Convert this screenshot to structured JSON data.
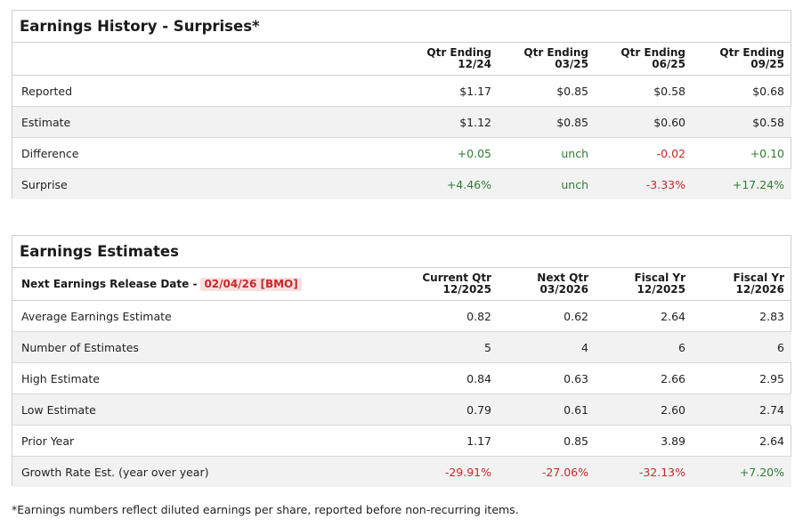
{
  "history": {
    "title": "Earnings History - Surprises*",
    "columns": [
      {
        "line1": "Qtr Ending",
        "line2": "12/24"
      },
      {
        "line1": "Qtr Ending",
        "line2": "03/25"
      },
      {
        "line1": "Qtr Ending",
        "line2": "06/25"
      },
      {
        "line1": "Qtr Ending",
        "line2": "09/25"
      }
    ],
    "rows": [
      {
        "label": "Reported",
        "values": [
          "$1.17",
          "$0.85",
          "$0.58",
          "$0.68"
        ]
      },
      {
        "label": "Estimate",
        "values": [
          "$1.12",
          "$0.85",
          "$0.60",
          "$0.58"
        ]
      },
      {
        "label": "Difference",
        "values": [
          "+0.05",
          "unch",
          "-0.02",
          "+0.10"
        ]
      },
      {
        "label": "Surprise",
        "values": [
          "+4.46%",
          "unch",
          "-3.33%",
          "+17.24%"
        ]
      }
    ]
  },
  "estimates": {
    "title": "Earnings Estimates",
    "release_label": "Next Earnings Release Date -",
    "release_date": "02/04/26 [BMO]",
    "columns": [
      {
        "line1": "Current Qtr",
        "line2": "12/2025"
      },
      {
        "line1": "Next Qtr",
        "line2": "03/2026"
      },
      {
        "line1": "Fiscal Yr",
        "line2": "12/2025"
      },
      {
        "line1": "Fiscal Yr",
        "line2": "12/2026"
      }
    ],
    "rows": [
      {
        "label": "Average Earnings Estimate",
        "values": [
          "0.82",
          "0.62",
          "2.64",
          "2.83"
        ]
      },
      {
        "label": "Number of Estimates",
        "values": [
          "5",
          "4",
          "6",
          "6"
        ]
      },
      {
        "label": "High Estimate",
        "values": [
          "0.84",
          "0.63",
          "2.66",
          "2.95"
        ]
      },
      {
        "label": "Low Estimate",
        "values": [
          "0.79",
          "0.61",
          "2.60",
          "2.74"
        ]
      },
      {
        "label": "Prior Year",
        "values": [
          "1.17",
          "0.85",
          "3.89",
          "2.64"
        ]
      },
      {
        "label": "Growth Rate Est. (year over year)",
        "values": [
          "-29.91%",
          "-27.06%",
          "-32.13%",
          "+7.20%"
        ]
      }
    ]
  },
  "colors": {
    "positive": "#2e7d32",
    "negative": "#c62828",
    "highlight_bg": "#fbe0e0"
  },
  "footnote": "*Earnings numbers reflect diluted earnings per share, reported before non-recurring items."
}
